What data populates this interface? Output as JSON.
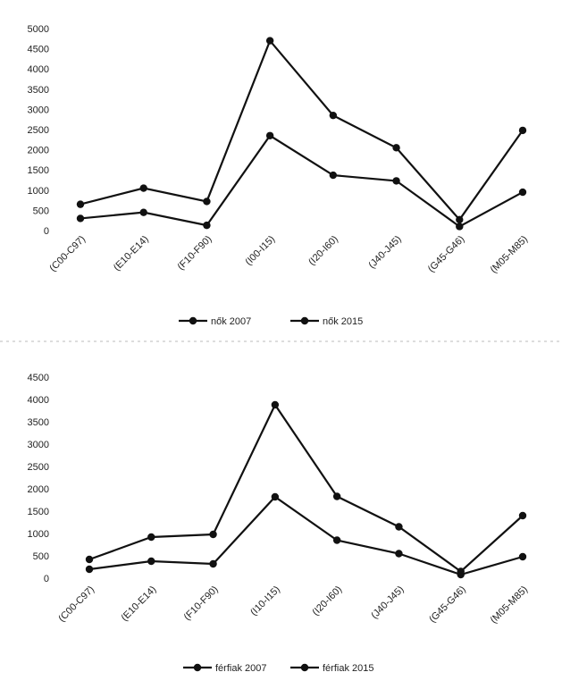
{
  "chart_data": [
    {
      "type": "line",
      "categories": [
        "(C00-C97)",
        "(E10-E14)",
        "(F10-F90)",
        "(I00-I15)",
        "(I20-I60)",
        "(J40-J45)",
        "(G45-G46)",
        "(M05-M85)"
      ],
      "series": [
        {
          "name": "nők 2007",
          "values": [
            300,
            450,
            130,
            2350,
            1370,
            1230,
            100,
            950
          ],
          "color": "#111111"
        },
        {
          "name": "nők 2015",
          "values": [
            650,
            1050,
            720,
            4700,
            2850,
            2050,
            270,
            2480
          ],
          "color": "#111111"
        }
      ],
      "yticks": [
        0,
        500,
        1000,
        1500,
        2000,
        2500,
        3000,
        3500,
        4000,
        4500,
        5000
      ],
      "ylim": [
        0,
        5000
      ],
      "grid": false,
      "legend_position": "bottom"
    },
    {
      "type": "line",
      "categories": [
        "(C00-C97)",
        "(E10-E14)",
        "(F10-F90)",
        "(I10-I15)",
        "(I20-I60)",
        "(J40-J45)",
        "(G45-G46)",
        "(M05-M85)"
      ],
      "series": [
        {
          "name": "férfiak 2007",
          "values": [
            200,
            380,
            320,
            1820,
            850,
            550,
            80,
            480
          ],
          "color": "#111111"
        },
        {
          "name": "férfiak 2015",
          "values": [
            420,
            920,
            980,
            3880,
            1830,
            1150,
            150,
            1400
          ],
          "color": "#111111"
        }
      ],
      "yticks": [
        0,
        500,
        1000,
        1500,
        2000,
        2500,
        3000,
        3500,
        4000,
        4500
      ],
      "ylim": [
        0,
        4500
      ],
      "grid": false,
      "legend_position": "bottom"
    }
  ]
}
